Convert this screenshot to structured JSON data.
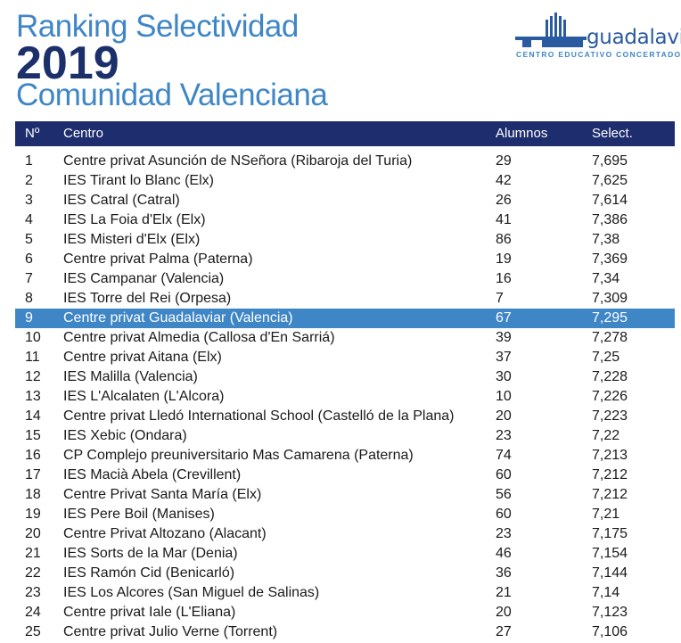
{
  "header": {
    "line1": "Ranking Selectividad",
    "year": "2019",
    "line3": "Comunidad Valenciana"
  },
  "logo": {
    "name": "guadalaviar",
    "subtitle": "CENTRO EDUCATIVO CONCERTADO",
    "color": "#2a5aa0"
  },
  "table": {
    "headers": {
      "num": "Nº",
      "centro": "Centro",
      "alumnos": "Alumnos",
      "select": "Select."
    },
    "highlight_color": "#3f86c6",
    "header_color": "#1e2d6e",
    "rows": [
      {
        "num": "1",
        "centro": "Centre privat Asunción de NSeñora (Ribaroja del Turia)",
        "alumnos": "29",
        "select": "7,695",
        "highlight": false
      },
      {
        "num": "2",
        "centro": "IES Tirant lo Blanc (Elx)",
        "alumnos": "42",
        "select": "7,625",
        "highlight": false
      },
      {
        "num": "3",
        "centro": "IES Catral (Catral)",
        "alumnos": "26",
        "select": "7,614",
        "highlight": false
      },
      {
        "num": "4",
        "centro": "IES La Foia d'Elx (Elx)",
        "alumnos": "41",
        "select": "7,386",
        "highlight": false
      },
      {
        "num": "5",
        "centro": "IES Misteri d'Elx (Elx)",
        "alumnos": "86",
        "select": "7,38",
        "highlight": false
      },
      {
        "num": "6",
        "centro": "Centre privat Palma (Paterna)",
        "alumnos": "19",
        "select": "7,369",
        "highlight": false
      },
      {
        "num": "7",
        "centro": "IES Campanar (Valencia)",
        "alumnos": "16",
        "select": "7,34",
        "highlight": false
      },
      {
        "num": "8",
        "centro": "IES Torre del Rei (Orpesa)",
        "alumnos": "7",
        "select": "7,309",
        "highlight": false
      },
      {
        "num": "9",
        "centro": "Centre privat Guadalaviar (Valencia)",
        "alumnos": "67",
        "select": "7,295",
        "highlight": true
      },
      {
        "num": "10",
        "centro": "Centre privat Almedia (Callosa d'En Sarriá)",
        "alumnos": "39",
        "select": "7,278",
        "highlight": false
      },
      {
        "num": "11",
        "centro": "Centre privat Aitana (Elx)",
        "alumnos": "37",
        "select": "7,25",
        "highlight": false
      },
      {
        "num": "12",
        "centro": "IES Malilla (Valencia)",
        "alumnos": "30",
        "select": "7,228",
        "highlight": false
      },
      {
        "num": "13",
        "centro": "IES L'Alcalaten (L'Alcora)",
        "alumnos": "10",
        "select": "7,226",
        "highlight": false
      },
      {
        "num": "14",
        "centro": "Centre privat Lledó International School (Castelló de la Plana)",
        "alumnos": "20",
        "select": "7,223",
        "highlight": false
      },
      {
        "num": "15",
        "centro": "IES Xebic (Ondara)",
        "alumnos": "23",
        "select": "7,22",
        "highlight": false
      },
      {
        "num": "16",
        "centro": "CP Complejo preuniversitario Mas Camarena (Paterna)",
        "alumnos": "74",
        "select": "7,213",
        "highlight": false
      },
      {
        "num": "17",
        "centro": "IES Macià Abela (Crevillent)",
        "alumnos": "60",
        "select": "7,212",
        "highlight": false
      },
      {
        "num": "18",
        "centro": "Centre Privat Santa María (Elx)",
        "alumnos": "56",
        "select": "7,212",
        "highlight": false
      },
      {
        "num": "19",
        "centro": "IES Pere Boil (Manises)",
        "alumnos": "60",
        "select": "7,21",
        "highlight": false
      },
      {
        "num": "20",
        "centro": "Centre Privat Altozano (Alacant)",
        "alumnos": "23",
        "select": "7,175",
        "highlight": false
      },
      {
        "num": "21",
        "centro": "IES Sorts de la Mar (Denia)",
        "alumnos": "46",
        "select": "7,154",
        "highlight": false
      },
      {
        "num": "22",
        "centro": "IES Ramón Cid (Benicarló)",
        "alumnos": "36",
        "select": "7,144",
        "highlight": false
      },
      {
        "num": "23",
        "centro": "IES Los Alcores (San Miguel de Salinas)",
        "alumnos": "21",
        "select": "7,14",
        "highlight": false
      },
      {
        "num": "24",
        "centro": "Centre privat Iale (L'Eliana)",
        "alumnos": "20",
        "select": "7,123",
        "highlight": false
      },
      {
        "num": "25",
        "centro": "Centre privat Julio Verne (Torrent)",
        "alumnos": "27",
        "select": "7,106",
        "highlight": false
      }
    ]
  }
}
